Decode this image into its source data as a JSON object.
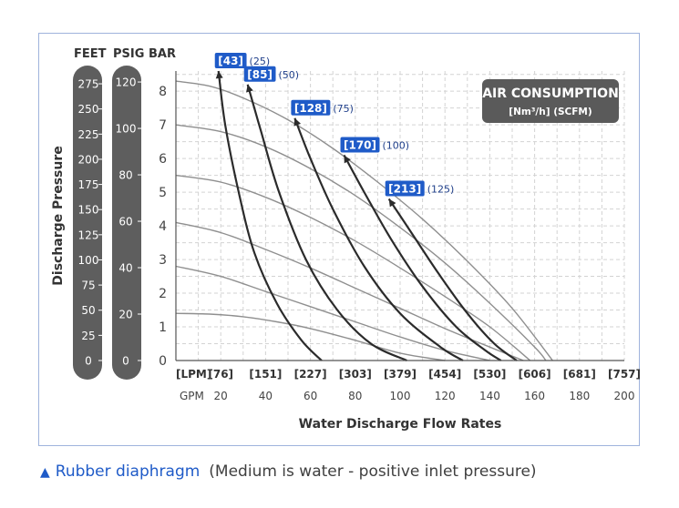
{
  "chart_data": {
    "type": "line",
    "title": "",
    "xlabel": "Water Discharge Flow Rates",
    "ylabel": "Discharge Pressure",
    "x_unit_lpm": "[LPM]",
    "x_unit_gpm": "GPM",
    "xlim": [
      0,
      200
    ],
    "ylim": [
      0,
      8.6
    ],
    "grid": true,
    "x_ticks_lpm": [
      "[76]",
      "[151]",
      "[227]",
      "[303]",
      "[379]",
      "[454]",
      "[530]",
      "[606]",
      "[681]",
      "[757]"
    ],
    "x_ticks_gpm": [
      "20",
      "40",
      "60",
      "80",
      "100",
      "120",
      "140",
      "160",
      "180",
      "200"
    ],
    "y_ticks_bar": [
      "0",
      "1",
      "2",
      "3",
      "4",
      "5",
      "6",
      "7",
      "8"
    ],
    "feet_scale": {
      "label": "FEET",
      "ticks": [
        "275",
        "250",
        "225",
        "200",
        "175",
        "150",
        "125",
        "100",
        "75",
        "50",
        "25",
        "0"
      ]
    },
    "psig_scale": {
      "label": "PSIG",
      "ticks": [
        "120",
        "100",
        "80",
        "60",
        "40",
        "20",
        "0"
      ]
    },
    "bar_label": "BAR",
    "legend": {
      "title": "AIR CONSUMPTION",
      "subtitle": "[Nm³/h] (SCFM)",
      "placement": "top-right",
      "background": "#5a5a5a"
    },
    "pressure_curves": [
      {
        "values": [
          [
            0,
            1.4
          ],
          [
            15,
            1.38
          ],
          [
            30,
            1.3
          ],
          [
            45,
            1.15
          ],
          [
            60,
            0.95
          ],
          [
            80,
            0.6
          ],
          [
            100,
            0.22
          ],
          [
            120,
            0
          ]
        ]
      },
      {
        "values": [
          [
            0,
            2.8
          ],
          [
            20,
            2.5
          ],
          [
            40,
            2.05
          ],
          [
            60,
            1.6
          ],
          [
            80,
            1.15
          ],
          [
            100,
            0.7
          ],
          [
            120,
            0.3
          ],
          [
            140,
            0
          ]
        ]
      },
      {
        "values": [
          [
            0,
            4.1
          ],
          [
            20,
            3.8
          ],
          [
            40,
            3.3
          ],
          [
            60,
            2.75
          ],
          [
            80,
            2.15
          ],
          [
            100,
            1.55
          ],
          [
            120,
            0.95
          ],
          [
            140,
            0.4
          ],
          [
            155,
            0
          ]
        ]
      },
      {
        "values": [
          [
            0,
            5.5
          ],
          [
            20,
            5.3
          ],
          [
            40,
            4.85
          ],
          [
            60,
            4.25
          ],
          [
            80,
            3.55
          ],
          [
            100,
            2.75
          ],
          [
            120,
            1.9
          ],
          [
            140,
            1.0
          ],
          [
            158,
            0
          ]
        ]
      },
      {
        "values": [
          [
            0,
            7.0
          ],
          [
            20,
            6.8
          ],
          [
            40,
            6.35
          ],
          [
            60,
            5.7
          ],
          [
            80,
            4.9
          ],
          [
            100,
            3.95
          ],
          [
            120,
            2.9
          ],
          [
            140,
            1.7
          ],
          [
            160,
            0.4
          ],
          [
            165,
            0
          ]
        ]
      },
      {
        "values": [
          [
            0,
            8.3
          ],
          [
            15,
            8.15
          ],
          [
            30,
            7.8
          ],
          [
            50,
            7.15
          ],
          [
            70,
            6.3
          ],
          [
            90,
            5.3
          ],
          [
            110,
            4.2
          ],
          [
            130,
            2.95
          ],
          [
            150,
            1.55
          ],
          [
            168,
            0
          ]
        ]
      }
    ],
    "air_curves": [
      {
        "label": "[43]",
        "scfm": "(25)",
        "values": [
          [
            19,
            8.6
          ],
          [
            22,
            7.0
          ],
          [
            28,
            5.0
          ],
          [
            35,
            3.2
          ],
          [
            45,
            1.7
          ],
          [
            56,
            0.6
          ],
          [
            65,
            0
          ]
        ]
      },
      {
        "label": "[85]",
        "scfm": "(50)",
        "values": [
          [
            32,
            8.2
          ],
          [
            38,
            6.8
          ],
          [
            46,
            5.0
          ],
          [
            58,
            3.0
          ],
          [
            72,
            1.5
          ],
          [
            87,
            0.5
          ],
          [
            103,
            0
          ]
        ]
      },
      {
        "label": "[128]",
        "scfm": "(75)",
        "values": [
          [
            53,
            7.2
          ],
          [
            60,
            6.0
          ],
          [
            70,
            4.5
          ],
          [
            84,
            2.8
          ],
          [
            100,
            1.4
          ],
          [
            118,
            0.4
          ],
          [
            128,
            0
          ]
        ]
      },
      {
        "label": "[170]",
        "scfm": "(100)",
        "values": [
          [
            75,
            6.1
          ],
          [
            84,
            5.0
          ],
          [
            96,
            3.6
          ],
          [
            110,
            2.2
          ],
          [
            125,
            1.0
          ],
          [
            138,
            0.3
          ],
          [
            145,
            0
          ]
        ]
      },
      {
        "label": "[213]",
        "scfm": "(125)",
        "values": [
          [
            95,
            4.8
          ],
          [
            105,
            3.8
          ],
          [
            117,
            2.6
          ],
          [
            130,
            1.4
          ],
          [
            142,
            0.5
          ],
          [
            152,
            0
          ]
        ]
      }
    ]
  },
  "caption": {
    "triangle": "▲",
    "main": "Rubber diaphragm",
    "note": "(Medium is water -  positive inlet pressure)"
  },
  "colors": {
    "label_blue": "#1f5bc8",
    "pill": "#5e5e5e",
    "grid": "#d3d3d3",
    "pressure_curve": "#8f8f8f",
    "air_curve": "#2b2b2b"
  }
}
